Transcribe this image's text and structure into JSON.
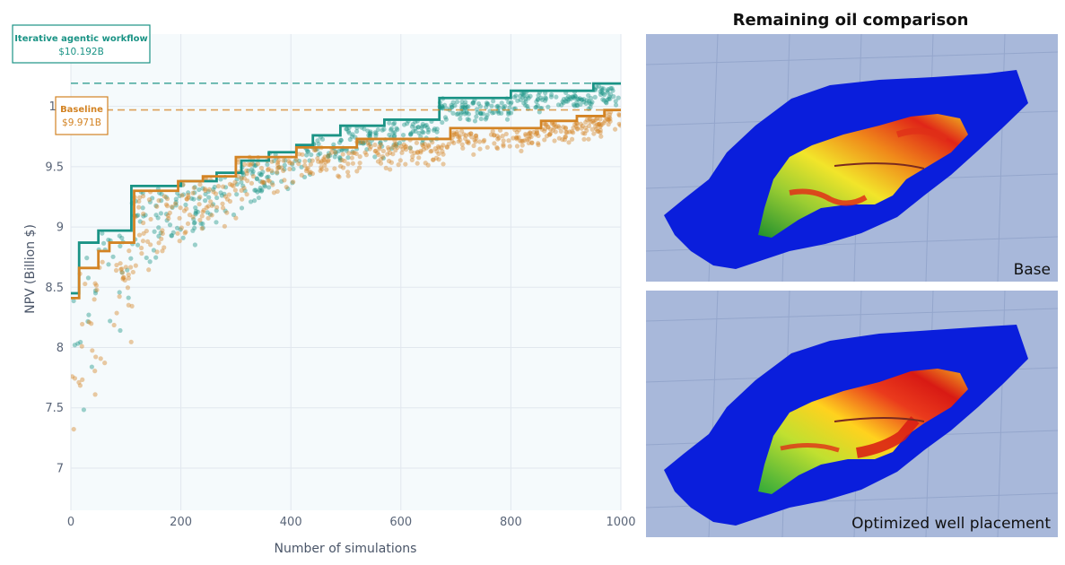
{
  "chart_data": {
    "type": "scatter",
    "xlabel": "Number of simulations",
    "ylabel": "NPV (Billion $)",
    "xlim": [
      0,
      1000
    ],
    "ylim": [
      6.65,
      10.6
    ],
    "x_ticks": [
      0,
      200,
      400,
      600,
      800,
      1000
    ],
    "y_ticks": [
      7,
      7.5,
      8,
      8.5,
      9,
      9.5,
      10
    ],
    "y_tick_labels": [
      "7",
      "7.5",
      "8",
      "8.5",
      "9",
      "9.5",
      "10"
    ],
    "grid": true,
    "series": [
      {
        "name": "Iterative agentic workflow",
        "color": "#1a9385",
        "best_value_label": "$10.192B",
        "best_value": 10.192,
        "best_so_far_steps": [
          [
            0,
            8.45
          ],
          [
            15,
            8.87
          ],
          [
            50,
            8.97
          ],
          [
            110,
            9.34
          ],
          [
            200,
            9.38
          ],
          [
            265,
            9.45
          ],
          [
            310,
            9.55
          ],
          [
            360,
            9.62
          ],
          [
            410,
            9.68
          ],
          [
            440,
            9.76
          ],
          [
            490,
            9.84
          ],
          [
            570,
            9.89
          ],
          [
            670,
            10.07
          ],
          [
            800,
            10.13
          ],
          [
            950,
            10.19
          ],
          [
            1000,
            10.19
          ]
        ]
      },
      {
        "name": "Baseline",
        "color": "#d38323",
        "best_value_label": "$9.971B",
        "best_value": 9.971,
        "best_so_far_steps": [
          [
            0,
            8.41
          ],
          [
            15,
            8.66
          ],
          [
            50,
            8.8
          ],
          [
            70,
            8.87
          ],
          [
            115,
            9.3
          ],
          [
            195,
            9.38
          ],
          [
            240,
            9.42
          ],
          [
            300,
            9.58
          ],
          [
            410,
            9.66
          ],
          [
            520,
            9.73
          ],
          [
            690,
            9.82
          ],
          [
            855,
            9.88
          ],
          [
            920,
            9.92
          ],
          [
            970,
            9.97
          ],
          [
            1000,
            9.97
          ]
        ]
      }
    ]
  },
  "maps": {
    "title": "Remaining oil comparison",
    "top_label": "Base",
    "bottom_label": "Optimized well placement"
  }
}
